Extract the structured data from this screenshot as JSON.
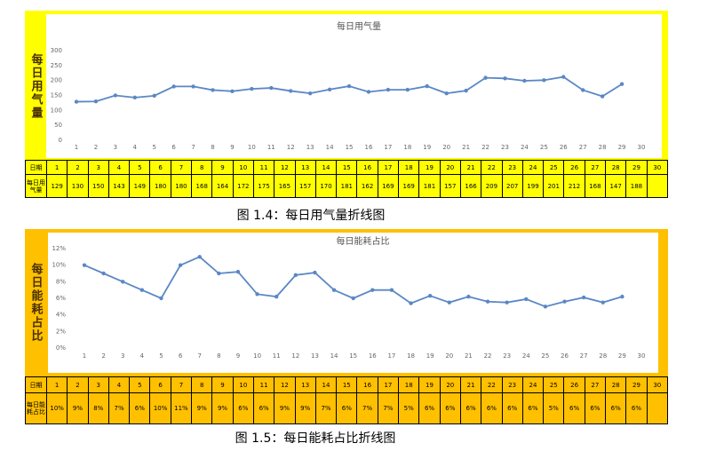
{
  "chart_data": [
    {
      "type": "line",
      "title": "每日用气量",
      "color": "#5b87c5",
      "categories": [
        1,
        2,
        3,
        4,
        5,
        6,
        7,
        8,
        9,
        10,
        11,
        12,
        13,
        14,
        15,
        16,
        17,
        18,
        19,
        20,
        21,
        22,
        23,
        24,
        25,
        26,
        27,
        28,
        29,
        30
      ],
      "values": [
        129,
        130,
        150,
        143,
        149,
        180,
        180,
        168,
        164,
        172,
        175,
        165,
        157,
        170,
        181,
        162,
        169,
        169,
        181,
        157,
        166,
        209,
        207,
        199,
        201,
        212,
        168,
        147,
        188,
        null
      ],
      "ylim": [
        0,
        300
      ],
      "yticks": [
        0,
        50,
        100,
        150,
        200,
        250,
        300
      ],
      "grid": false
    },
    {
      "type": "line",
      "title": "每日能耗占比",
      "color": "#5b87c5",
      "categories": [
        1,
        2,
        3,
        4,
        5,
        6,
        7,
        8,
        9,
        10,
        11,
        12,
        13,
        14,
        15,
        16,
        17,
        18,
        19,
        20,
        21,
        22,
        23,
        24,
        25,
        26,
        27,
        28,
        29,
        30
      ],
      "values": [
        10,
        9,
        8,
        7,
        6,
        10,
        11,
        9,
        9.2,
        6.5,
        6.2,
        8.8,
        9.1,
        7,
        6,
        7,
        7,
        5.4,
        6.3,
        5.5,
        6.2,
        5.6,
        5.5,
        5.9,
        5,
        5.6,
        6.1,
        5.5,
        6.2,
        null
      ],
      "value_labels": [
        "10%",
        "9%",
        "8%",
        "7%",
        "6%",
        "10%",
        "11%",
        "9%",
        "9%",
        "6%",
        "6%",
        "9%",
        "9%",
        "7%",
        "6%",
        "7%",
        "7%",
        "5%",
        "6%",
        "6%",
        "6%",
        "6%",
        "6%",
        "6%",
        "5%",
        "6%",
        "6%",
        "6%",
        "6%",
        null
      ],
      "ylim": [
        0,
        12
      ],
      "yticks": [
        {
          "value": 0,
          "label": "0%"
        },
        {
          "value": 2,
          "label": "2%"
        },
        {
          "value": 4,
          "label": "4%"
        },
        {
          "value": 6,
          "label": "6%"
        },
        {
          "value": 8,
          "label": "8%"
        },
        {
          "value": 10,
          "label": "10%"
        },
        {
          "value": 12,
          "label": "12%"
        }
      ],
      "grid": false
    }
  ],
  "side_labels": [
    "每日用气量",
    "每日能耗占比"
  ],
  "row_headers": [
    [
      "日期",
      "每日用气量"
    ],
    [
      "日期",
      "每日能耗占比"
    ]
  ],
  "captions": [
    "图 1.4：每日用气量折线图",
    "图 1.5：每日能耗占比折线图"
  ]
}
